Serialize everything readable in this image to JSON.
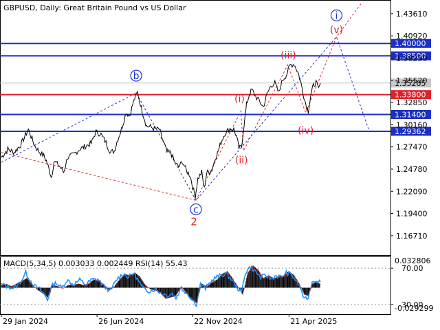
{
  "header": {
    "title": "GBPUSD, Daily:  Great Britain Pound vs US Dollar",
    "indicator_text": "MACD(5,34,5) 0.003033 0.002449 RSI(14) 55.43"
  },
  "chart_data": {
    "type": "line",
    "price_axis": {
      "range": [
        1.1445,
        1.451
      ],
      "ticks": [
        "1.43610",
        "1.40920",
        "1.38230",
        "1.35520",
        "1.32850",
        "1.30160",
        "1.27470",
        "1.24780",
        "1.22090",
        "1.19400",
        "1.16710"
      ],
      "tick_values": [
        1.4361,
        1.4092,
        1.3823,
        1.3552,
        1.3285,
        1.3016,
        1.2747,
        1.2478,
        1.2209,
        1.194,
        1.1671
      ]
    },
    "levels": [
      {
        "label": "1.40000",
        "value": 1.4,
        "color": "#1b2fc4"
      },
      {
        "label": "1.38500",
        "value": 1.385,
        "color": "#1b2fc4"
      },
      {
        "label": "1.33800",
        "value": 1.338,
        "color": "#e0202a"
      },
      {
        "label": "1.31400",
        "value": 1.314,
        "color": "#1b2fc4"
      },
      {
        "label": "1.29362",
        "value": 1.29362,
        "color": "#1b2fc4"
      }
    ],
    "current_price": {
      "label": "1.35205",
      "value": 1.35205
    },
    "x_axis": {
      "total_days": 605,
      "tick_labels": [
        "29 Jan 2024",
        "26 Jun 2024",
        "22 Nov 2024",
        "21 Apr 2025"
      ],
      "tick_days": [
        0,
        149,
        298,
        448
      ]
    },
    "price_series": [
      [
        0,
        1.262
      ],
      [
        10,
        1.272
      ],
      [
        20,
        1.268
      ],
      [
        30,
        1.277
      ],
      [
        42,
        1.296
      ],
      [
        52,
        1.276
      ],
      [
        60,
        1.268
      ],
      [
        66,
        1.264
      ],
      [
        70,
        1.258
      ],
      [
        74,
        1.248
      ],
      [
        78,
        1.238
      ],
      [
        82,
        1.257
      ],
      [
        90,
        1.252
      ],
      [
        97,
        1.244
      ],
      [
        103,
        1.262
      ],
      [
        112,
        1.265
      ],
      [
        122,
        1.272
      ],
      [
        132,
        1.276
      ],
      [
        140,
        1.279
      ],
      [
        147,
        1.293
      ],
      [
        155,
        1.29
      ],
      [
        163,
        1.28
      ],
      [
        170,
        1.268
      ],
      [
        176,
        1.27
      ],
      [
        180,
        1.281
      ],
      [
        187,
        1.296
      ],
      [
        194,
        1.316
      ],
      [
        200,
        1.313
      ],
      [
        206,
        1.33
      ],
      [
        212,
        1.341
      ],
      [
        218,
        1.322
      ],
      [
        222,
        1.311
      ],
      [
        226,
        1.3
      ],
      [
        232,
        1.299
      ],
      [
        240,
        1.296
      ],
      [
        246,
        1.296
      ],
      [
        250,
        1.286
      ],
      [
        258,
        1.268
      ],
      [
        264,
        1.268
      ],
      [
        270,
        1.256
      ],
      [
        276,
        1.25
      ],
      [
        282,
        1.257
      ],
      [
        288,
        1.246
      ],
      [
        294,
        1.24
      ],
      [
        298,
        1.226
      ],
      [
        302,
        1.215
      ],
      [
        306,
        1.236
      ],
      [
        312,
        1.244
      ],
      [
        316,
        1.224
      ],
      [
        320,
        1.244
      ],
      [
        324,
        1.244
      ],
      [
        328,
        1.247
      ],
      [
        334,
        1.263
      ],
      [
        338,
        1.27
      ],
      [
        342,
        1.28
      ],
      [
        348,
        1.291
      ],
      [
        356,
        1.297
      ],
      [
        362,
        1.296
      ],
      [
        366,
        1.288
      ],
      [
        370,
        1.273
      ],
      [
        374,
        1.275
      ],
      [
        378,
        1.302
      ],
      [
        382,
        1.326
      ],
      [
        386,
        1.338
      ],
      [
        390,
        1.344
      ],
      [
        396,
        1.336
      ],
      [
        402,
        1.33
      ],
      [
        408,
        1.323
      ],
      [
        414,
        1.339
      ],
      [
        420,
        1.349
      ],
      [
        426,
        1.352
      ],
      [
        432,
        1.34
      ],
      [
        438,
        1.356
      ],
      [
        444,
        1.362
      ],
      [
        450,
        1.374
      ],
      [
        456,
        1.375
      ],
      [
        462,
        1.365
      ],
      [
        466,
        1.354
      ],
      [
        470,
        1.34
      ],
      [
        474,
        1.327
      ],
      [
        478,
        1.318
      ],
      [
        482,
        1.338
      ],
      [
        486,
        1.349
      ],
      [
        490,
        1.353
      ],
      [
        494,
        1.345
      ],
      [
        497,
        1.352
      ]
    ],
    "wave_lines": [
      {
        "color": "#1d2fd0",
        "style": "dashed",
        "points": [
          [
            0,
            1.256
          ],
          [
            210,
            1.34
          ],
          [
            303,
            1.21
          ],
          [
            522,
            1.408
          ],
          [
            572,
            1.296
          ]
        ]
      },
      {
        "color": "#e0202a",
        "style": "dashed",
        "points": [
          [
            0,
            1.268
          ],
          [
            303,
            1.21
          ]
        ]
      },
      {
        "color": "#e0202a",
        "style": "dashed",
        "points": [
          [
            303,
            1.21
          ],
          [
            373,
            1.318
          ],
          [
            377,
            1.27
          ],
          [
            446,
            1.374
          ],
          [
            474,
            1.316
          ],
          [
            522,
            1.408
          ],
          [
            560,
            1.448
          ]
        ]
      }
    ],
    "wave_labels": [
      {
        "text": "i",
        "day": 522,
        "price": 1.434,
        "circled": true,
        "color": "#1d2fd0"
      },
      {
        "text": "b",
        "day": 210,
        "price": 1.361,
        "circled": true,
        "color": "#1d2fd0"
      },
      {
        "text": "c",
        "day": 303,
        "price": 1.199,
        "circled": true,
        "color": "#1d2fd0"
      },
      {
        "text": "2",
        "day": 300,
        "price": 1.184,
        "circled": false,
        "color": "#c8281e"
      },
      {
        "text": "(i)",
        "day": 371,
        "price": 1.333,
        "circled": false,
        "color": "#e0202a"
      },
      {
        "text": "(ii)",
        "day": 374,
        "price": 1.259,
        "circled": false,
        "color": "#e0202a"
      },
      {
        "text": "(iii)",
        "day": 447,
        "price": 1.386,
        "circled": false,
        "color": "#e0202a"
      },
      {
        "text": "(iv)",
        "day": 474,
        "price": 1.295,
        "circled": false,
        "color": "#e0202a"
      },
      {
        "text": "(v)",
        "day": 522,
        "price": 1.417,
        "circled": false,
        "color": "#e0202a"
      }
    ],
    "indicator": {
      "macd_ticks": [
        "0.032806",
        "-0.029299"
      ],
      "rsi_ticks": [
        "70.00",
        "30.00"
      ],
      "rsi_range": [
        20,
        80
      ],
      "rsi_series": [
        [
          0,
          52
        ],
        [
          10,
          50
        ],
        [
          20,
          48
        ],
        [
          30,
          55
        ],
        [
          38,
          65
        ],
        [
          44,
          58
        ],
        [
          52,
          50
        ],
        [
          60,
          47
        ],
        [
          66,
          42
        ],
        [
          72,
          35
        ],
        [
          78,
          50
        ],
        [
          86,
          54
        ],
        [
          94,
          48
        ],
        [
          102,
          57
        ],
        [
          112,
          52
        ],
        [
          122,
          57
        ],
        [
          132,
          52
        ],
        [
          140,
          57
        ],
        [
          150,
          58
        ],
        [
          160,
          50
        ],
        [
          170,
          45
        ],
        [
          180,
          58
        ],
        [
          190,
          64
        ],
        [
          198,
          60
        ],
        [
          206,
          65
        ],
        [
          212,
          58
        ],
        [
          220,
          48
        ],
        [
          230,
          45
        ],
        [
          240,
          47
        ],
        [
          250,
          42
        ],
        [
          260,
          40
        ],
        [
          266,
          42
        ],
        [
          272,
          37
        ],
        [
          280,
          48
        ],
        [
          290,
          42
        ],
        [
          298,
          35
        ],
        [
          304,
          30
        ],
        [
          310,
          52
        ],
        [
          318,
          48
        ],
        [
          326,
          55
        ],
        [
          334,
          60
        ],
        [
          342,
          62
        ],
        [
          350,
          64
        ],
        [
          358,
          58
        ],
        [
          366,
          50
        ],
        [
          374,
          43
        ],
        [
          380,
          65
        ],
        [
          388,
          72
        ],
        [
          396,
          66
        ],
        [
          404,
          60
        ],
        [
          412,
          62
        ],
        [
          420,
          58
        ],
        [
          428,
          62
        ],
        [
          436,
          60
        ],
        [
          444,
          65
        ],
        [
          452,
          63
        ],
        [
          460,
          55
        ],
        [
          466,
          48
        ],
        [
          472,
          35
        ],
        [
          478,
          38
        ],
        [
          484,
          55
        ],
        [
          490,
          57
        ],
        [
          497,
          55
        ]
      ],
      "macd_histogram": [
        [
          0,
          0.004
        ],
        [
          8,
          0.005
        ],
        [
          16,
          0.002
        ],
        [
          24,
          0.006
        ],
        [
          32,
          0.01
        ],
        [
          40,
          0.014
        ],
        [
          48,
          0.005
        ],
        [
          56,
          -0.003
        ],
        [
          64,
          -0.008
        ],
        [
          72,
          -0.014
        ],
        [
          80,
          0.004
        ],
        [
          88,
          0.002
        ],
        [
          96,
          -0.001
        ],
        [
          104,
          0.004
        ],
        [
          112,
          0.004
        ],
        [
          120,
          0.006
        ],
        [
          128,
          0.004
        ],
        [
          136,
          0.006
        ],
        [
          144,
          0.012
        ],
        [
          152,
          0.01
        ],
        [
          160,
          0.004
        ],
        [
          168,
          -0.004
        ],
        [
          176,
          0.002
        ],
        [
          184,
          0.012
        ],
        [
          192,
          0.02
        ],
        [
          200,
          0.018
        ],
        [
          208,
          0.022
        ],
        [
          216,
          0.016
        ],
        [
          224,
          0.004
        ],
        [
          232,
          -0.002
        ],
        [
          240,
          -0.004
        ],
        [
          248,
          -0.008
        ],
        [
          256,
          -0.016
        ],
        [
          264,
          -0.014
        ],
        [
          272,
          -0.012
        ],
        [
          280,
          0.002
        ],
        [
          288,
          -0.008
        ],
        [
          296,
          -0.018
        ],
        [
          304,
          -0.022
        ],
        [
          312,
          0.006
        ],
        [
          320,
          0.002
        ],
        [
          328,
          0.008
        ],
        [
          336,
          0.012
        ],
        [
          344,
          0.02
        ],
        [
          352,
          0.024
        ],
        [
          360,
          0.014
        ],
        [
          368,
          0.002
        ],
        [
          376,
          -0.01
        ],
        [
          384,
          0.022
        ],
        [
          392,
          0.032
        ],
        [
          400,
          0.026
        ],
        [
          408,
          0.014
        ],
        [
          416,
          0.018
        ],
        [
          424,
          0.014
        ],
        [
          432,
          0.016
        ],
        [
          440,
          0.018
        ],
        [
          448,
          0.024
        ],
        [
          456,
          0.018
        ],
        [
          464,
          0.006
        ],
        [
          472,
          -0.01
        ],
        [
          478,
          -0.012
        ],
        [
          484,
          0.006
        ],
        [
          490,
          0.008
        ],
        [
          497,
          0.006
        ]
      ]
    }
  }
}
